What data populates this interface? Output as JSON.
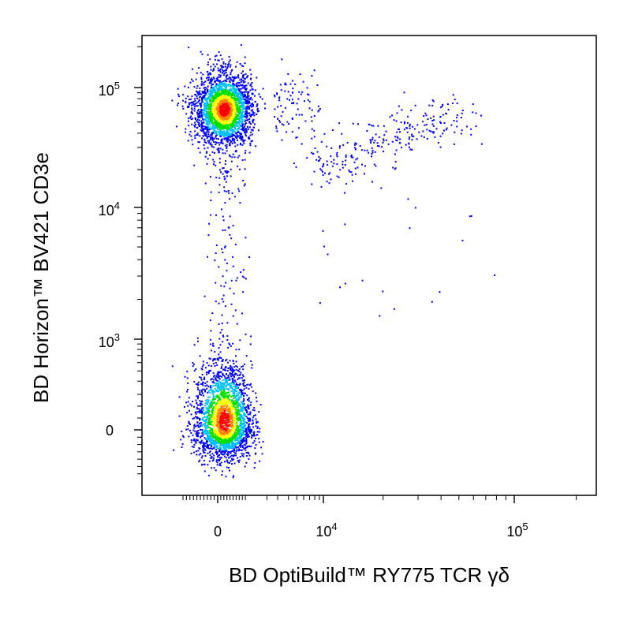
{
  "chart_data": {
    "type": "scatter",
    "xlabel": "BD OptiBuild™ RY775 TCR γδ",
    "ylabel": "BD Horizon™ BV421 CD3e",
    "x_scale": "biexponential",
    "y_scale": "biexponential",
    "xlim": [
      -1500,
      250000
    ],
    "ylim": [
      -700,
      220000
    ],
    "x_ticks": [
      {
        "value": 0,
        "base": "0",
        "exp": ""
      },
      {
        "value": 10000,
        "base": "10",
        "exp": "4"
      },
      {
        "value": 100000,
        "base": "10",
        "exp": "5"
      }
    ],
    "y_ticks": [
      {
        "value": 0,
        "base": "0",
        "exp": ""
      },
      {
        "value": 1000,
        "base": "10",
        "exp": "3"
      },
      {
        "value": 10000,
        "base": "10",
        "exp": "4"
      },
      {
        "value": 100000,
        "base": "10",
        "exp": "5"
      }
    ],
    "color_scale": [
      "#0000ff",
      "#00c0ff",
      "#00e000",
      "#ffff00",
      "#ff8000",
      "#ff0000"
    ],
    "populations": [
      {
        "center_x": 200,
        "center_y": 65000,
        "spread_x": 450,
        "spread_y": 0.17,
        "n": 2600,
        "note": "CD3e+ TCR γδ-"
      },
      {
        "center_x": 200,
        "center_y": 80,
        "spread_x": 450,
        "spread_y": 230,
        "n": 2400,
        "note": "CD3e- TCR γδ-"
      },
      {
        "x_range": [
          9000,
          45000
        ],
        "y_range": [
          20000,
          60000
        ],
        "n": 260,
        "note": "CD3e+ TCR γδ+"
      }
    ],
    "grid": false
  }
}
